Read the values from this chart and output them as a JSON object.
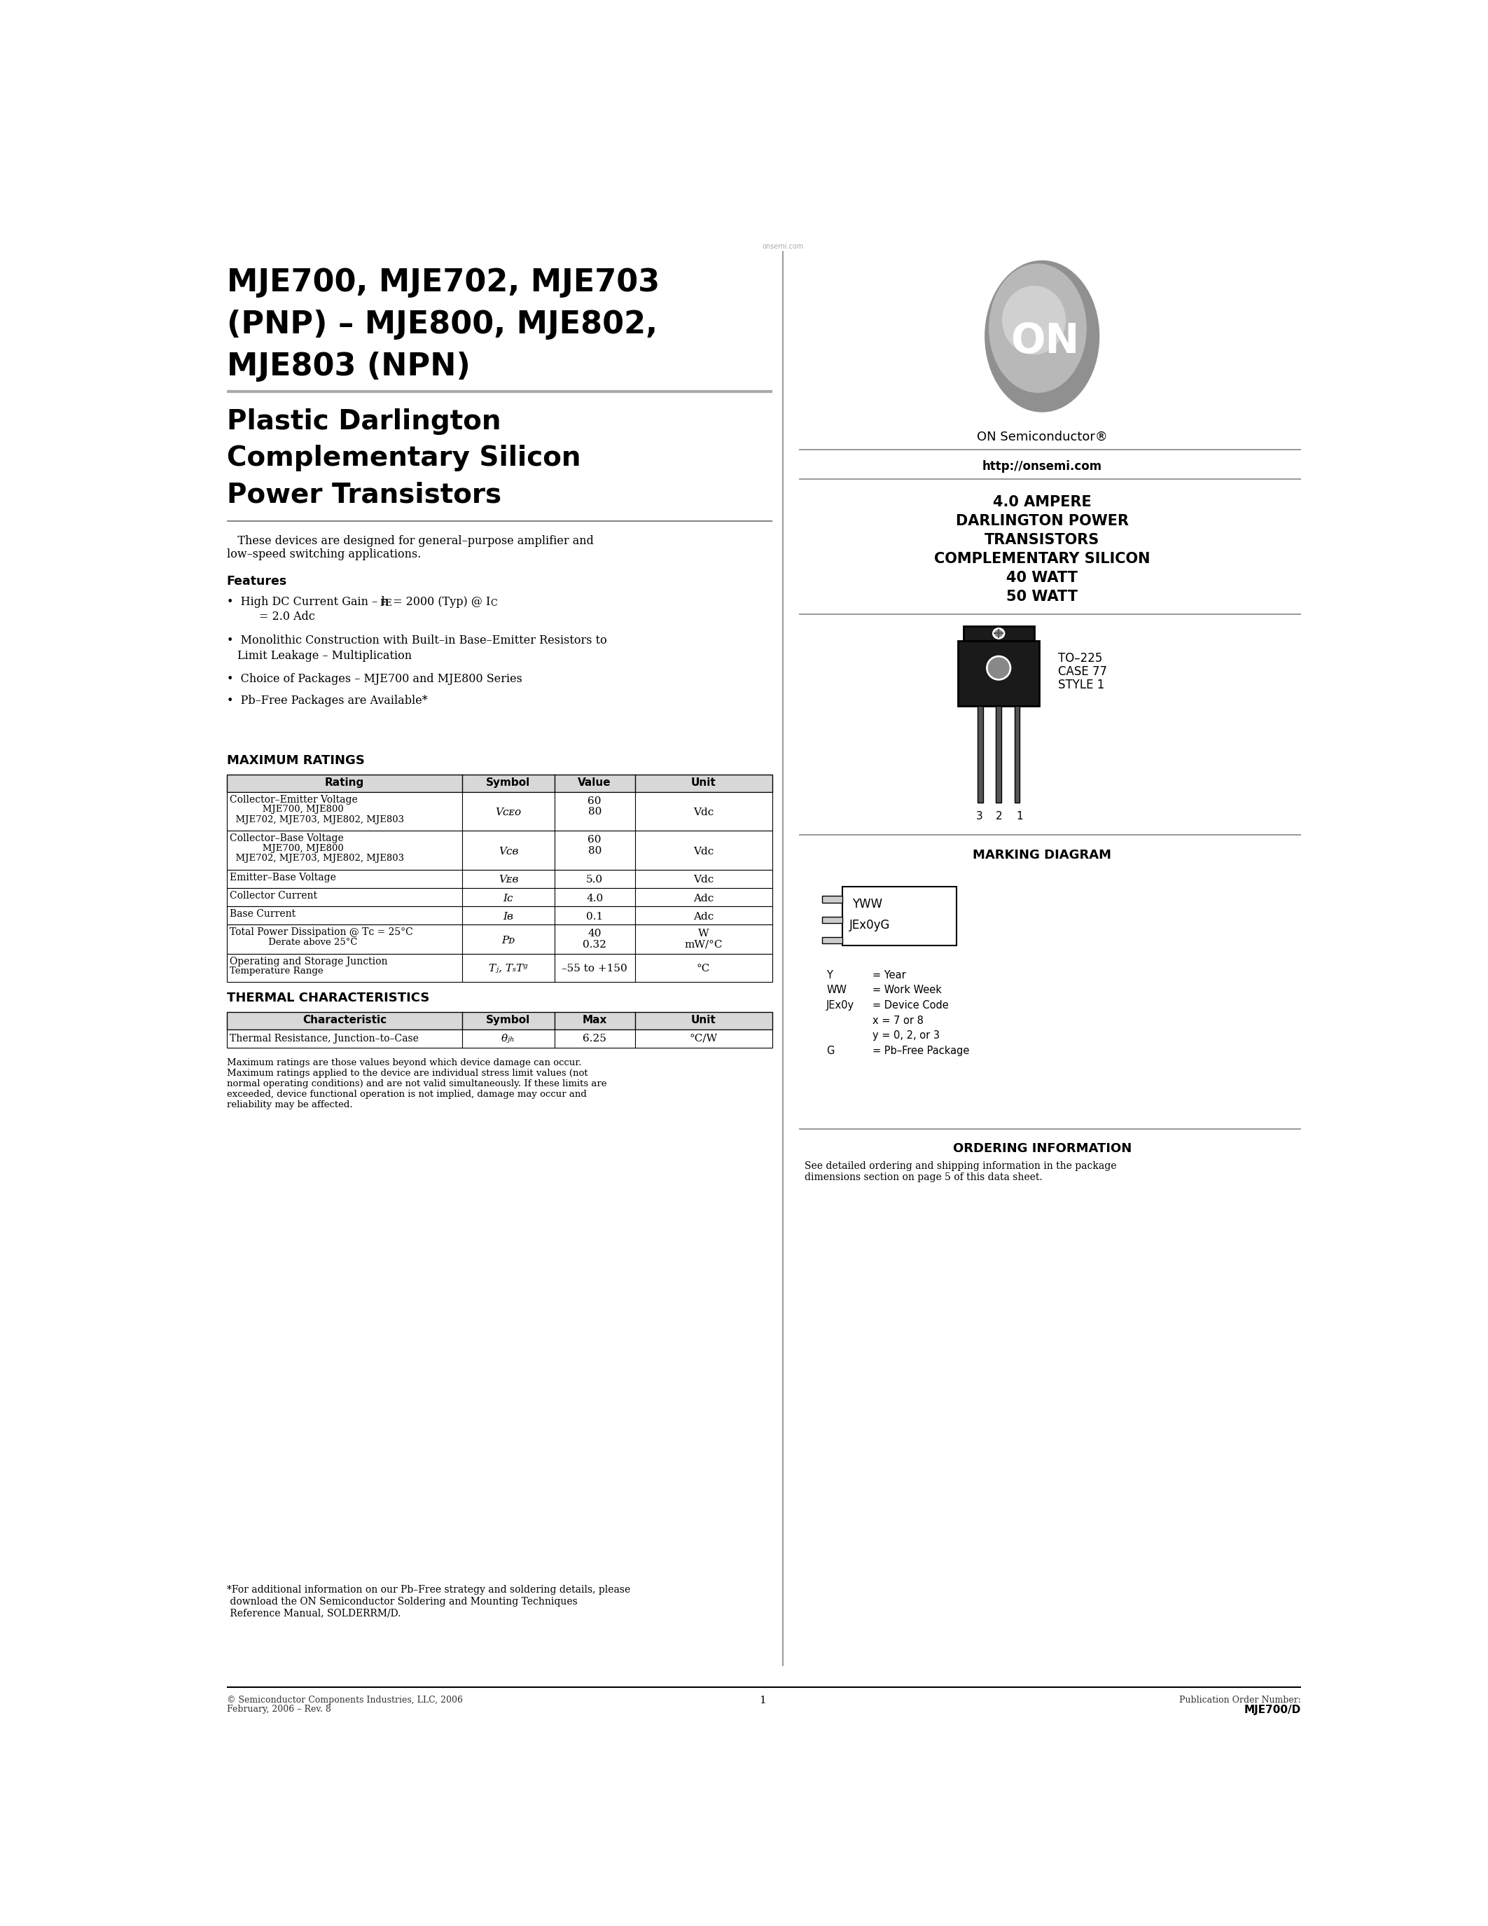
{
  "bg_color": "#ffffff",
  "title_line1": "MJE700, MJE702, MJE703",
  "title_line2": "(PNP) – MJE800, MJE802,",
  "title_line3": "MJE803 (NPN)",
  "subtitle_line1": "Plastic Darlington",
  "subtitle_line2": "Complementary Silicon",
  "subtitle_line3": "Power Transistors",
  "desc_text": "   These devices are designed for general–purpose amplifier and\nlow–speed switching applications.",
  "features_title": "Features",
  "on_semi_text": "ON Semiconductor",
  "website": "http://onsemi.com",
  "right_title1": "4.0 AMPERE",
  "right_title2": "DARLINGTON POWER",
  "right_title3": "TRANSISTORS",
  "right_title4": "COMPLEMENTARY SILICON",
  "right_title5": "40 WATT",
  "right_title6": "50 WATT",
  "package_label1": "TO–225",
  "package_label2": "CASE 77",
  "package_label3": "STYLE 1",
  "marking_title": "MARKING DIAGRAM",
  "marking_text1": "YWW",
  "marking_text2": "JEx0yG",
  "legend_Y": "Y",
  "legend_Y_val": "= Year",
  "legend_WW": "WW",
  "legend_WW_val": "= Work Week",
  "legend_JEx0y": "JEx0y",
  "legend_JEx0y_val": "= Device Code",
  "legend_x_val": "x = 7 or 8",
  "legend_y_val": "y = 0, 2, or 3",
  "legend_G": "G",
  "legend_G_val": "= Pb–Free Package",
  "ordering_title": "ORDERING INFORMATION",
  "ordering_text": "See detailed ordering and shipping information in the package\ndimensions section on page 5 of this data sheet.",
  "max_ratings_title": "MAXIMUM RATINGS",
  "table1_headers": [
    "Rating",
    "Symbol",
    "Value",
    "Unit"
  ],
  "thermal_title": "THERMAL CHARACTERISTICS",
  "table2_headers": [
    "Characteristic",
    "Symbol",
    "Max",
    "Unit"
  ],
  "footnote_text": "Maximum ratings are those values beyond which device damage can occur.\nMaximum ratings applied to the device are individual stress limit values (not\nnormal operating conditions) and are not valid simultaneously. If these limits are\nexceeded, device functional operation is not implied, damage may occur and\nreliability may be affected.",
  "bottom_note1": "*For additional information on our Pb–Free strategy and soldering details, please",
  "bottom_note2": " download the ON Semiconductor Soldering and Mounting Techniques",
  "bottom_note3": " Reference Manual, SOLDERRM/D.",
  "footer_left1": "© Semiconductor Components Industries, LLC, 2006",
  "footer_left2": "February, 2006 – Rev. 8",
  "footer_center": "1",
  "footer_right1": "Publication Order Number:",
  "footer_right2": "MJE700/D"
}
